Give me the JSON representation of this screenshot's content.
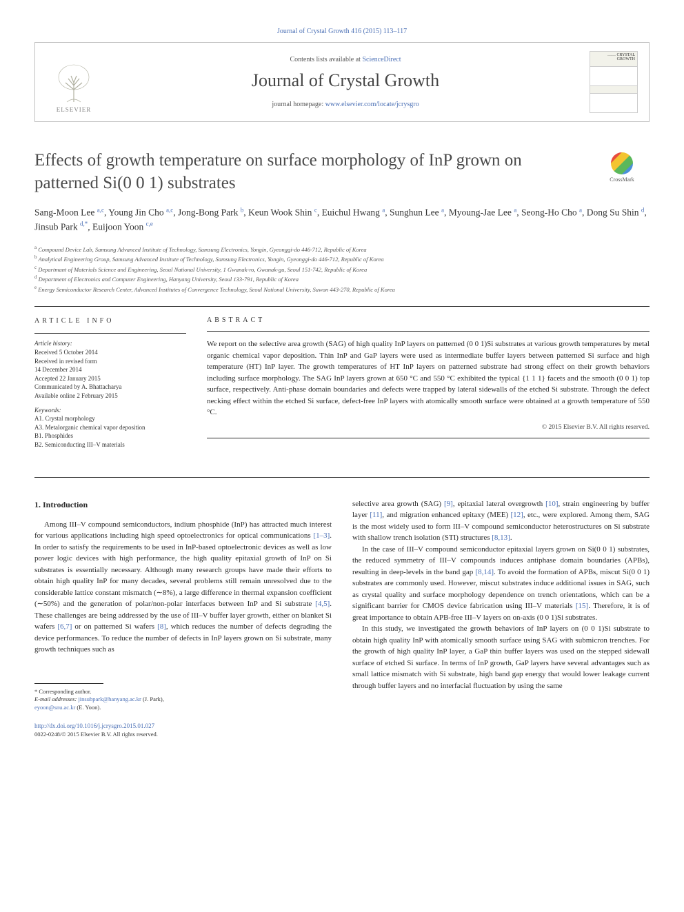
{
  "top_citation": "Journal of Crystal Growth 416 (2015) 113–117",
  "header": {
    "contents_prefix": "Contents lists available at ",
    "contents_link": "ScienceDirect",
    "journal": "Journal of Crystal Growth",
    "homepage_prefix": "journal homepage: ",
    "homepage_url": "www.elsevier.com/locate/jcrysgro",
    "publisher": "ELSEVIER",
    "cover_brand": "…… CRYSTAL GROWTH"
  },
  "crossmark_label": "CrossMark",
  "title": "Effects of growth temperature on surface morphology of InP grown on patterned Si(0 0 1) substrates",
  "authors_html": "Sang-Moon Lee <sup>a,c</sup>, Young Jin Cho <sup>a,c</sup>, Jong-Bong Park <sup>b</sup>, Keun Wook Shin <sup>c</sup>, Euichul Hwang <sup>a</sup>, Sunghun Lee <sup>a</sup>, Myoung-Jae Lee <sup>a</sup>, Seong-Ho Cho <sup>a</sup>, Dong Su Shin <sup>d</sup>, Jinsub Park <sup>d,*</sup>, Euijoon Yoon <sup>c,e</sup>",
  "affiliations": [
    "a Compound Device Lab, Samsung Advanced Institute of Technology, Samsung Electronics, Yongin, Gyeonggi-do 446-712, Republic of Korea",
    "b Analytical Engineering Group, Samsung Advanced Institute of Technology, Samsung Electronics, Yongin, Gyeonggi-do 446-712, Republic of Korea",
    "c Departmant of Materials Science and Engineering, Seoul National University, 1 Gwanak-ro, Gwanak-gu, Seoul 151-742, Republic of Korea",
    "d Department of Electronics and Computer Engineering, Hanyang University, Seoul 133-791, Republic of Korea",
    "e Energy Semiconductor Research Center, Advanced Institutes of Convergence Technology, Seoul National University, Suwon 443-270, Republic of Korea"
  ],
  "article_info": {
    "label": "ARTICLE INFO",
    "history_label": "Article history:",
    "history": [
      "Received 5 October 2014",
      "Received in revised form",
      "14 December 2014",
      "Accepted 22 January 2015",
      "Communicated by A. Bhattacharya",
      "Available online 2 February 2015"
    ],
    "keywords_label": "Keywords:",
    "keywords": [
      "A1. Crystal morphology",
      "A3. Metalorganic chemical vapor deposition",
      "B1. Phosphides",
      "B2. Semiconducting III–V materials"
    ]
  },
  "abstract": {
    "label": "ABSTRACT",
    "text": "We report on the selective area growth (SAG) of high quality InP layers on patterned (0 0 1)Si substrates at various growth temperatures by metal organic chemical vapor deposition. Thin InP and GaP layers were used as intermediate buffer layers between patterned Si surface and high temperature (HT) InP layer. The growth temperatures of HT InP layers on patterned substrate had strong effect on their growth behaviors including surface morphology. The SAG InP layers grown at 650 °C and 550 °C exhibited the typical {1 1 1} facets and the smooth (0 0 1) top surface, respectively. Anti-phase domain boundaries and defects were trapped by lateral sidewalls of the etched Si substrate. Through the defect necking effect within the etched Si surface, defect-free InP layers with atomically smooth surface were obtained at a growth temperature of 550 °C.",
    "copyright": "© 2015 Elsevier B.V. All rights reserved."
  },
  "sections": {
    "intro_heading": "1.  Introduction",
    "col1_p1": "Among III–V compound semiconductors, indium phosphide (InP) has attracted much interest for various applications including high speed optoelectronics for optical communications [1–3]. In order to satisfy the requirements to be used in InP-based optoelectronic devices as well as low power logic devices with high performance, the high quality epitaxial growth of InP on Si substrates is essentially necessary. Although many research groups have made their efforts to obtain high quality InP for many decades, several problems still remain unresolved due to the considerable lattice constant mismatch (∼8%), a large difference in thermal expansion coefficient (∼50%) and the generation of polar/non-polar interfaces between InP and Si substrate [4,5]. These challenges are being addressed by the use of III–V buffer layer growth, either on blanket Si wafers [6,7] or on patterned Si wafers [8], which reduces the number of defects degrading the device performances. To reduce the number of defects in InP layers grown on Si substrate, many growth techniques such as",
    "col2_p1": "selective area growth (SAG) [9], epitaxial lateral overgrowth [10], strain engineering by buffer layer [11], and migration enhanced epitaxy (MEE) [12], etc., were explored. Among them, SAG is the most widely used to form III–V compound semiconductor heterostructures on Si substrate with shallow trench isolation (STI) structures [8,13].",
    "col2_p2": "In the case of III–V compound semiconductor epitaxial layers grown on Si(0 0 1) substrates, the reduced symmetry of III–V compounds induces antiphase domain boundaries (APBs), resulting in deep-levels in the band gap [8,14]. To avoid the formation of APBs, miscut Si(0 0 1) substrates are commonly used. However, miscut substrates induce additional issues in SAG, such as crystal quality and surface morphology dependence on trench orientations, which can be a significant barrier for CMOS device fabrication using III–V materials [15]. Therefore, it is of great importance to obtain APB-free III–V layers on on-axis (0 0 1)Si substrates.",
    "col2_p3": "In this study, we investigated the growth behaviors of InP layers on (0 0 1)Si substrate to obtain high quality InP with atomically smooth surface using SAG with submicron trenches. For the growth of high quality InP layer, a GaP thin buffer layers was used on the stepped sidewall surface of etched Si surface. In terms of InP growth, GaP layers have several advantages such as small lattice mismatch with Si substrate, high band gap energy that would lower leakage current through buffer layers and no interfacial fluctuation by using the same"
  },
  "footnote": {
    "corr": "* Corresponding author.",
    "email_label": "E-mail addresses: ",
    "email1": "jinsubpark@hanyang.ac.kr",
    "email1_who": " (J. Park),",
    "email2": "eyoon@snu.ac.kr",
    "email2_who": " (E. Yoon).",
    "doi": "http://dx.doi.org/10.1016/j.jcrysgro.2015.01.027",
    "issn": "0022-0248/© 2015 Elsevier B.V. All rights reserved."
  },
  "colors": {
    "link": "#4a6fb5",
    "text": "#2a2a2a",
    "rule": "#2a2a2a",
    "border": "#bfbfbf"
  }
}
